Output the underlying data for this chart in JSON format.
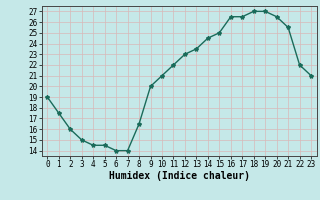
{
  "x": [
    0,
    1,
    2,
    3,
    4,
    5,
    6,
    7,
    8,
    9,
    10,
    11,
    12,
    13,
    14,
    15,
    16,
    17,
    18,
    19,
    20,
    21,
    22,
    23
  ],
  "y": [
    19,
    17.5,
    16,
    15,
    14.5,
    14.5,
    14,
    14,
    16.5,
    20,
    21,
    22,
    23,
    23.5,
    24.5,
    25,
    26.5,
    26.5,
    27,
    27,
    26.5,
    25.5,
    22,
    21
  ],
  "line_color": "#1a6b5a",
  "marker": "*",
  "marker_size": 3,
  "bg_color": "#c5e8e8",
  "grid_color": "#d8b8b8",
  "xlabel": "Humidex (Indice chaleur)",
  "xlim": [
    -0.5,
    23.5
  ],
  "ylim": [
    13.5,
    27.5
  ],
  "yticks": [
    14,
    15,
    16,
    17,
    18,
    19,
    20,
    21,
    22,
    23,
    24,
    25,
    26,
    27
  ],
  "xticks": [
    0,
    1,
    2,
    3,
    4,
    5,
    6,
    7,
    8,
    9,
    10,
    11,
    12,
    13,
    14,
    15,
    16,
    17,
    18,
    19,
    20,
    21,
    22,
    23
  ],
  "tick_fontsize": 5.5,
  "xlabel_fontsize": 7.0
}
